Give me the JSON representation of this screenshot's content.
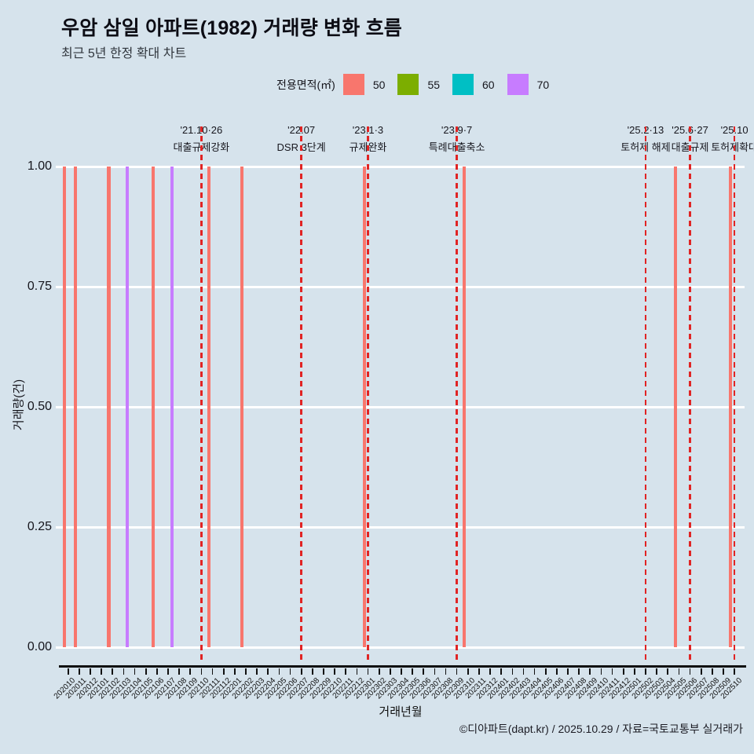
{
  "header": {
    "title": "우암 삼일 아파트(1982) 거래량 변화 흐름",
    "subtitle": "최근 5년 한정 확대 차트"
  },
  "legend": {
    "label": "전용면적(㎡)",
    "items": [
      {
        "label": "50",
        "color": "#F8766D"
      },
      {
        "label": "55",
        "color": "#7CAE00"
      },
      {
        "label": "60",
        "color": "#00BFC4"
      },
      {
        "label": "70",
        "color": "#C77CFF"
      }
    ]
  },
  "chart_data": {
    "type": "bar",
    "title": "우암 삼일 아파트(1982) 거래량 변화 흐름",
    "subtitle": "최근 5년 한정 확대 차트",
    "xlabel": "거래년월",
    "ylabel": "거래량(건)",
    "ylim": [
      0,
      1
    ],
    "yticks": [
      "0.00",
      "0.25",
      "0.50",
      "0.75",
      "1.00"
    ],
    "grid": true,
    "legend_position": "top",
    "x_categories": [
      "202010",
      "202011",
      "202012",
      "202101",
      "202102",
      "202103",
      "202104",
      "202105",
      "202106",
      "202107",
      "202108",
      "202109",
      "202110",
      "202111",
      "202112",
      "202201",
      "202202",
      "202203",
      "202204",
      "202205",
      "202206",
      "202207",
      "202208",
      "202209",
      "202210",
      "202211",
      "202212",
      "202301",
      "202302",
      "202303",
      "202304",
      "202305",
      "202306",
      "202307",
      "202308",
      "202309",
      "202310",
      "202311",
      "202312",
      "202401",
      "202402",
      "202403",
      "202404",
      "202405",
      "202406",
      "202407",
      "202408",
      "202409",
      "202410",
      "202411",
      "202412",
      "202501",
      "202502",
      "202503",
      "202504",
      "202505",
      "202506",
      "202507",
      "202508",
      "202509",
      "202510"
    ],
    "series": [
      {
        "name": "50",
        "color": "#F8766D",
        "points": [
          {
            "x": "202010",
            "y": 1
          },
          {
            "x": "202011",
            "y": 1
          },
          {
            "x": "202102",
            "y": 1
          },
          {
            "x": "202106",
            "y": 1
          },
          {
            "x": "202111",
            "y": 1
          },
          {
            "x": "202202",
            "y": 1
          },
          {
            "x": "202301",
            "y": 1
          },
          {
            "x": "202310",
            "y": 1
          },
          {
            "x": "202505",
            "y": 1
          },
          {
            "x": "202510",
            "y": 1
          }
        ]
      },
      {
        "name": "55",
        "color": "#7CAE00",
        "points": []
      },
      {
        "name": "60",
        "color": "#00BFC4",
        "points": []
      },
      {
        "name": "70",
        "color": "#C77CFF",
        "points": [
          {
            "x": "202103",
            "y": 1
          },
          {
            "x": "202107",
            "y": 1
          }
        ]
      }
    ],
    "annotations": [
      {
        "x": "202110",
        "date": "'21.10·26",
        "label": "대출규제강화",
        "line_color": "#e02424",
        "thin": false
      },
      {
        "x": "202207",
        "date": "'22.07",
        "label": "DSR 3단계",
        "line_color": "#e02424",
        "thin": false
      },
      {
        "x": "202301",
        "date": "'23.1·3",
        "label": "규제완화",
        "line_color": "#e02424",
        "thin": false
      },
      {
        "x": "202309",
        "date": "'23.9·7",
        "label": "특례대출축소",
        "line_color": "#e02424",
        "thin": false
      },
      {
        "x": "202502",
        "date": "'25.2·13",
        "label": "토허제 해제",
        "line_color": "#e02424",
        "thin": true
      },
      {
        "x": "202506",
        "date": "'25.6·27",
        "label": "대출규제",
        "line_color": "#e02424",
        "thin": false
      },
      {
        "x": "202510",
        "date": "'25.10",
        "label": "토허제확대",
        "line_color": "#e02424",
        "thin": false
      }
    ]
  },
  "footer": {
    "credit": "©디아파트(dapt.kr) / 2025.10.29 / 자료=국토교통부 실거래가"
  }
}
